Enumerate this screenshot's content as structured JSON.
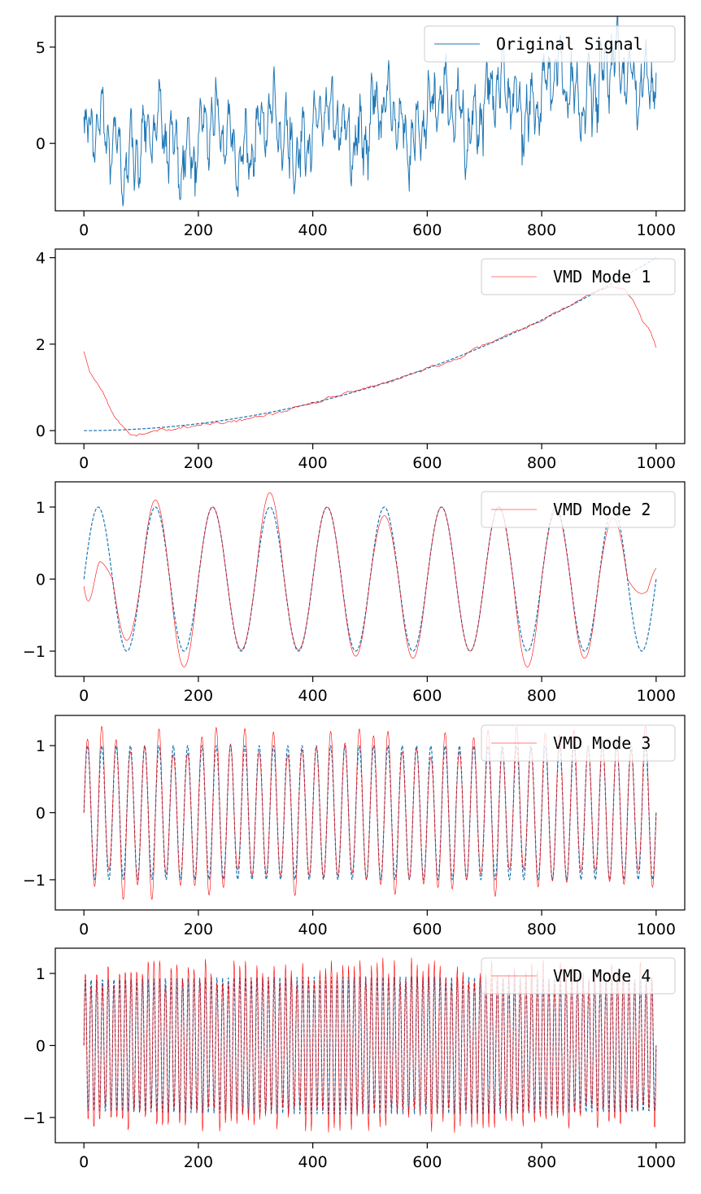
{
  "chart_data": [
    {
      "type": "line",
      "xlim": [
        -50,
        1050
      ],
      "ylim": [
        -3.5,
        6.6
      ],
      "x_ticks": [
        0,
        200,
        400,
        600,
        800,
        1000
      ],
      "y_ticks": [
        0,
        5
      ],
      "grid": false,
      "legend": {
        "placement": "top-right",
        "entries": [
          "Original Signal"
        ]
      },
      "series": [
        {
          "name": "Original Signal",
          "color": "#1f77b4",
          "style": "solid",
          "n_points": 1000,
          "x_range": [
            0,
            1000
          ],
          "trend": {
            "kind": "quadratic",
            "end_value": 4.0
          },
          "components": [
            {
              "kind": "sine",
              "amplitude": 1.0,
              "cycles": 10
            },
            {
              "kind": "sine",
              "amplitude": 1.0,
              "cycles": 40
            },
            {
              "kind": "sine",
              "amplitude": 1.0,
              "cycles": 100
            }
          ],
          "noise_std": 0.5,
          "y_range_observed": [
            -3.0,
            6.2
          ]
        }
      ]
    },
    {
      "type": "line",
      "xlim": [
        -50,
        1050
      ],
      "ylim": [
        -0.3,
        4.2
      ],
      "x_ticks": [
        0,
        200,
        400,
        600,
        800,
        1000
      ],
      "y_ticks": [
        0,
        2,
        4
      ],
      "grid": false,
      "legend": {
        "placement": "top-right",
        "entries": [
          "VMD Mode 1"
        ]
      },
      "series": [
        {
          "color": "#1f77b4",
          "style": "dashed",
          "kind": "quadratic",
          "n_points": 1000,
          "x_range": [
            0,
            1000
          ],
          "end_value": 4.0
        },
        {
          "name": "VMD Mode 1",
          "color": "#ff0000",
          "style": "solid",
          "x": [
            0,
            10,
            25,
            40,
            55,
            70,
            85,
            100,
            130,
            160,
            200,
            250,
            300,
            350,
            400,
            450,
            500,
            550,
            600,
            650,
            700,
            750,
            800,
            850,
            900,
            925,
            945,
            960,
            975,
            990,
            1000
          ],
          "y": [
            1.82,
            1.35,
            1.05,
            0.7,
            0.3,
            0.05,
            -0.08,
            -0.08,
            0.03,
            0.05,
            0.1,
            0.2,
            0.3,
            0.45,
            0.65,
            0.85,
            1.02,
            1.2,
            1.45,
            1.65,
            1.95,
            2.25,
            2.55,
            2.9,
            3.25,
            3.35,
            3.25,
            3.0,
            2.6,
            2.3,
            1.92
          ]
        }
      ]
    },
    {
      "type": "line",
      "xlim": [
        -50,
        1050
      ],
      "ylim": [
        -1.35,
        1.35
      ],
      "x_ticks": [
        0,
        200,
        400,
        600,
        800,
        1000
      ],
      "y_ticks": [
        -1,
        0,
        1
      ],
      "grid": false,
      "legend": {
        "placement": "top-right",
        "entries": [
          "VMD Mode 2"
        ]
      },
      "series": [
        {
          "color": "#1f77b4",
          "style": "dashed",
          "kind": "sine",
          "amplitude": 1.0,
          "cycles": 10,
          "n_points": 1000,
          "x_range": [
            0,
            1000
          ]
        },
        {
          "name": "VMD Mode 2",
          "color": "#ff0000",
          "style": "solid",
          "kind": "sine",
          "amplitude": 1.0,
          "cycles": 10,
          "n_points": 1000,
          "x_range": [
            0,
            1000
          ],
          "peak_values": [
            0.25,
            1.1,
            1.0,
            1.2,
            1.0,
            0.88,
            1.0,
            1.0,
            0.95,
            0.85
          ],
          "trough_values": [
            -0.85,
            -1.22,
            -0.98,
            -0.98,
            -1.07,
            -1.1,
            -1.0,
            -1.22,
            -1.1,
            -0.2
          ],
          "edge_start_value": -0.1,
          "edge_start_dip": -0.58,
          "edge_end_value": 0.15
        }
      ]
    },
    {
      "type": "line",
      "xlim": [
        -50,
        1050
      ],
      "ylim": [
        -1.45,
        1.45
      ],
      "x_ticks": [
        0,
        200,
        400,
        600,
        800,
        1000
      ],
      "y_ticks": [
        -1,
        0,
        1
      ],
      "grid": false,
      "legend": {
        "placement": "top-right",
        "entries": [
          "VMD Mode 3"
        ]
      },
      "series": [
        {
          "color": "#1f77b4",
          "style": "dashed",
          "kind": "sine",
          "amplitude": 1.0,
          "cycles": 40,
          "n_points": 1000,
          "x_range": [
            0,
            1000
          ]
        },
        {
          "name": "VMD Mode 3",
          "color": "#ff0000",
          "style": "solid",
          "kind": "sine",
          "amplitude_range": [
            0.82,
            1.32
          ],
          "cycles": 40,
          "n_points": 1000,
          "x_range": [
            0,
            1000
          ]
        }
      ]
    },
    {
      "type": "line",
      "xlim": [
        -50,
        1050
      ],
      "ylim": [
        -1.35,
        1.35
      ],
      "x_ticks": [
        0,
        200,
        400,
        600,
        800,
        1000
      ],
      "y_ticks": [
        -1,
        0,
        1
      ],
      "grid": false,
      "legend": {
        "placement": "top-right",
        "entries": [
          "VMD Mode 4"
        ]
      },
      "series": [
        {
          "color": "#1f77b4",
          "style": "dashed",
          "kind": "sine",
          "amplitude": 0.95,
          "cycles": 100,
          "n_points": 1000,
          "x_range": [
            0,
            1000
          ]
        },
        {
          "name": "VMD Mode 4",
          "color": "#ff0000",
          "style": "solid",
          "kind": "sine",
          "amplitude_range": [
            0.85,
            1.22
          ],
          "cycles": 100,
          "n_points": 1000,
          "x_range": [
            0,
            1000
          ]
        }
      ]
    }
  ]
}
